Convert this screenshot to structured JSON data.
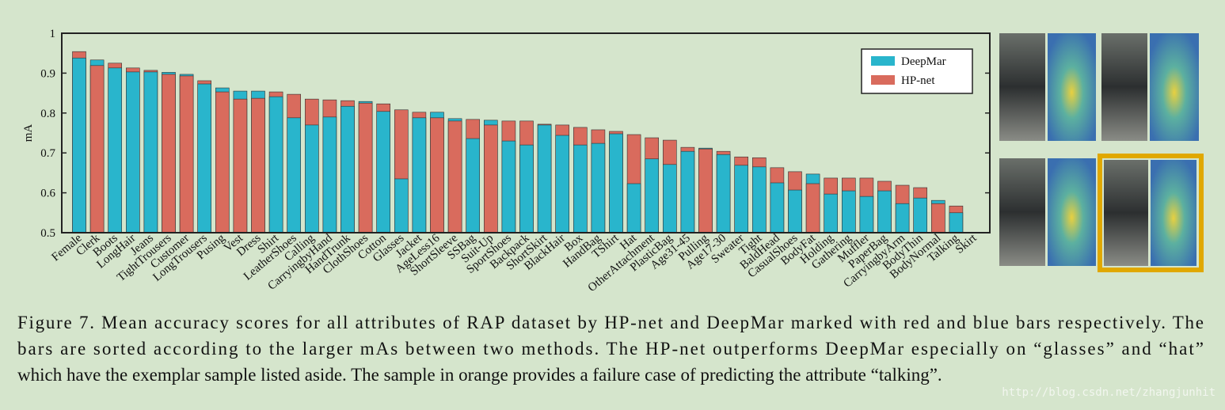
{
  "chart_data": {
    "type": "bar",
    "y_label": "mA",
    "categories": [
      "Female",
      "Clerk",
      "Boots",
      "LongHair",
      "Jeans",
      "TightTrousers",
      "Customer",
      "LongTrousers",
      "Pusing",
      "Vest",
      "Dress",
      "Shirt",
      "LeatherShoes",
      "Calling",
      "CarryingbyHand",
      "HandTrunk",
      "ClothShoes",
      "Cotton",
      "Glasses",
      "Jacket",
      "AgeLess16",
      "ShortSleeve",
      "SSBag",
      "Suit-Up",
      "SportShoes",
      "Backpack",
      "ShortSkirt",
      "BlackHair",
      "Box",
      "HandBag",
      "TShirt",
      "Hat",
      "OtherAttachment",
      "PlasticBag",
      "Age31-45",
      "Pulling",
      "Age17-30",
      "Sweater",
      "Tight",
      "BaldHead",
      "CasualShoes",
      "BodyFat",
      "Holding",
      "Gathering",
      "Muffler",
      "PaperBag",
      "CarryingbyArm",
      "BodyThin",
      "BodyNormal",
      "Talking",
      "Skirt"
    ],
    "series": [
      {
        "name": "DeepMar",
        "color": "#29b5cc",
        "values": [
          0.938,
          0.933,
          0.913,
          0.903,
          0.903,
          0.902,
          0.897,
          0.873,
          0.863,
          0.855,
          0.855,
          0.841,
          0.788,
          0.77,
          0.79,
          0.817,
          0.829,
          0.804,
          0.635,
          0.788,
          0.802,
          0.786,
          0.736,
          0.782,
          0.73,
          0.72,
          0.77,
          0.744,
          0.72,
          0.724,
          0.748,
          0.623,
          0.685,
          0.671,
          0.704,
          0.712,
          0.696,
          0.669,
          0.665,
          0.625,
          0.607,
          0.647,
          0.597,
          0.605,
          0.591,
          0.605,
          0.573,
          0.587,
          0.581,
          0.55,
          null
        ]
      },
      {
        "name": "HP-net",
        "color": "#d96b5d",
        "values": [
          0.954,
          0.919,
          0.925,
          0.913,
          0.907,
          0.897,
          0.893,
          0.881,
          0.853,
          0.835,
          0.837,
          0.853,
          0.847,
          0.835,
          0.833,
          0.831,
          0.825,
          0.823,
          0.808,
          0.802,
          0.788,
          0.78,
          0.784,
          0.77,
          0.78,
          0.78,
          0.772,
          0.77,
          0.764,
          0.758,
          0.754,
          0.746,
          0.738,
          0.732,
          0.714,
          0.71,
          0.704,
          0.69,
          0.688,
          0.663,
          0.653,
          0.623,
          0.637,
          0.637,
          0.637,
          0.629,
          0.619,
          0.613,
          0.573,
          0.567,
          null
        ]
      }
    ],
    "ylim": [
      0.5,
      1
    ],
    "yticks": [
      0.5,
      0.6,
      0.7,
      0.8,
      0.9,
      1
    ],
    "legend": "top-right"
  },
  "caption": [
    "Figure 7.  Mean accuracy scores for all attributes of RAP dataset by HP-net and DeepMar marked with red and blue bars respectively. The",
    "bars are sorted according to the larger mAs between two methods. The HP-net outperforms DeepMar especially on “glasses” and “hat”",
    "which have the exemplar sample listed aside. The sample in orange provides a failure case of predicting the attribute “talking”."
  ],
  "watermark": "http://blog.csdn.net/zhangjunhit"
}
